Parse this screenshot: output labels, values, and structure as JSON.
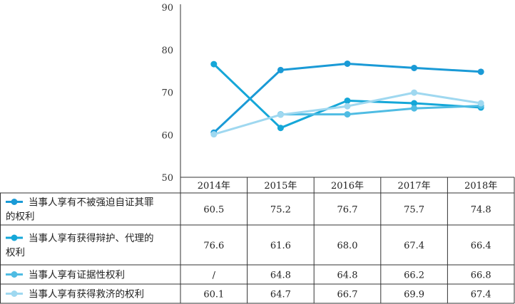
{
  "chart_data": {
    "type": "line",
    "title": "",
    "xlabel": "",
    "ylabel": "",
    "ylim": [
      50,
      90
    ],
    "yticks": [
      50,
      60,
      70,
      80,
      90
    ],
    "categories": [
      "2014年",
      "2015年",
      "2016年",
      "2017年",
      "2018年"
    ],
    "legend_placement": "table-left",
    "grid": false,
    "series": [
      {
        "name": "当事人享有不被强迫自证其罪的权利",
        "label_lines": [
          "当事人享有不被强迫自证其罪",
          "的权利"
        ],
        "values": [
          60.5,
          75.2,
          76.7,
          75.7,
          74.8
        ],
        "display": [
          "60.5",
          "75.2",
          "76.7",
          "75.7",
          "74.8"
        ],
        "color": "#1a9ad6"
      },
      {
        "name": "当事人享有获得辩护、代理的权利",
        "label_lines": [
          "当事人享有获得辩护、代理的",
          "权利"
        ],
        "values": [
          76.6,
          61.6,
          68.0,
          67.4,
          66.4
        ],
        "display": [
          "76.6",
          "61.6",
          "68.0",
          "67.4",
          "66.4"
        ],
        "color": "#15a7d8"
      },
      {
        "name": "当事人享有证据性权利",
        "label_lines": [
          "当事人享有证据性权利"
        ],
        "values": [
          null,
          64.8,
          64.8,
          66.2,
          66.8
        ],
        "display": [
          "/",
          "64.8",
          "64.8",
          "66.2",
          "66.8"
        ],
        "color": "#4fbce3"
      },
      {
        "name": "当事人享有获得救济的权利",
        "label_lines": [
          "当事人享有获得救济的权利"
        ],
        "values": [
          60.1,
          64.7,
          66.7,
          69.9,
          67.4
        ],
        "display": [
          "60.1",
          "64.7",
          "66.7",
          "69.9",
          "67.4"
        ],
        "color": "#9fd8f0"
      }
    ]
  }
}
